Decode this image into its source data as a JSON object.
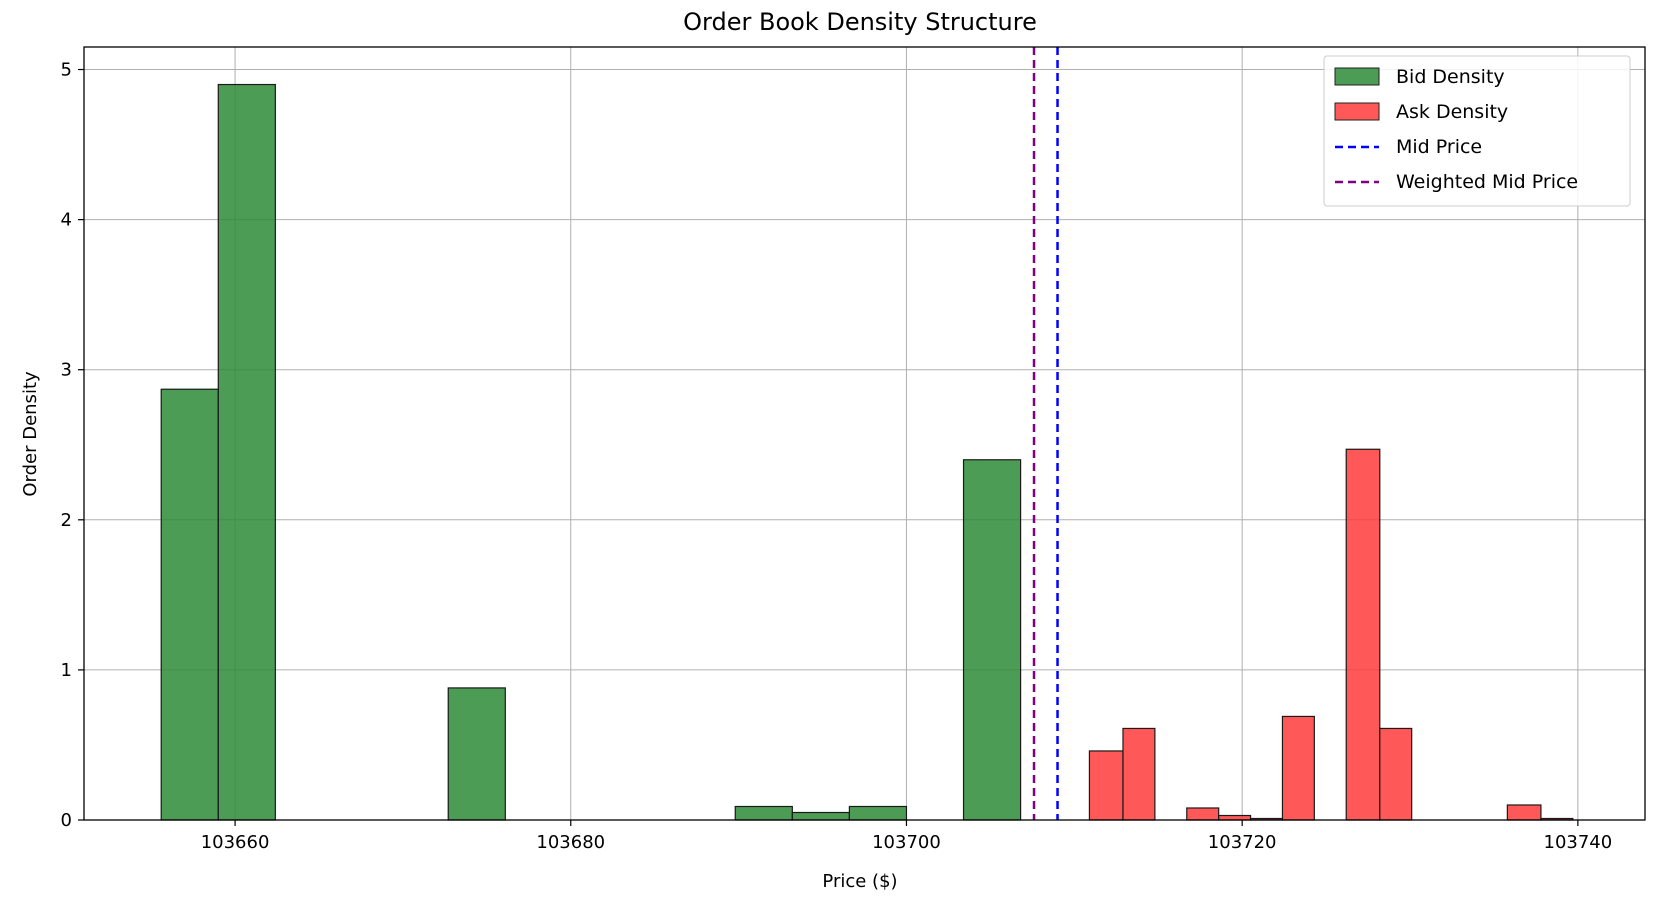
{
  "chart_data": {
    "type": "bar",
    "title": "Order Book Density Structure",
    "xlabel": "Price ($)",
    "ylabel": "Order Density",
    "xlim": [
      103651,
      103744
    ],
    "ylim": [
      0,
      5.15
    ],
    "grid": true,
    "legend_position": "top-right",
    "xticks": [
      103660,
      103680,
      103700,
      103720,
      103740
    ],
    "yticks": [
      0,
      1,
      2,
      3,
      4,
      5
    ],
    "series": [
      {
        "name": "Bid Density",
        "color": "#2e8b37",
        "bins": [
          {
            "x0": 103655.6,
            "x1": 103659.0,
            "value": 2.87
          },
          {
            "x0": 103659.0,
            "x1": 103662.4,
            "value": 4.9
          },
          {
            "x0": 103672.7,
            "x1": 103676.1,
            "value": 0.88
          },
          {
            "x0": 103689.8,
            "x1": 103693.2,
            "value": 0.09
          },
          {
            "x0": 103693.2,
            "x1": 103696.6,
            "value": 0.05
          },
          {
            "x0": 103696.6,
            "x1": 103700.0,
            "value": 0.09
          },
          {
            "x0": 103703.4,
            "x1": 103706.8,
            "value": 2.4
          }
        ]
      },
      {
        "name": "Ask Density",
        "color": "#ff3b3b",
        "bins": [
          {
            "x0": 103710.9,
            "x1": 103712.9,
            "value": 0.46
          },
          {
            "x0": 103712.9,
            "x1": 103714.8,
            "value": 0.61
          },
          {
            "x0": 103716.7,
            "x1": 103718.6,
            "value": 0.08
          },
          {
            "x0": 103718.6,
            "x1": 103720.5,
            "value": 0.03
          },
          {
            "x0": 103720.5,
            "x1": 103722.4,
            "value": 0.01
          },
          {
            "x0": 103722.4,
            "x1": 103724.3,
            "value": 0.69
          },
          {
            "x0": 103726.2,
            "x1": 103728.2,
            "value": 2.47
          },
          {
            "x0": 103728.2,
            "x1": 103730.1,
            "value": 0.61
          },
          {
            "x0": 103735.8,
            "x1": 103737.8,
            "value": 0.1
          },
          {
            "x0": 103737.8,
            "x1": 103739.7,
            "value": 0.01
          }
        ]
      }
    ],
    "reference_lines": [
      {
        "name": "Mid Price",
        "x": 103709.0,
        "color": "#0000ff",
        "style": "dashed"
      },
      {
        "name": "Weighted Mid Price",
        "x": 103707.6,
        "color": "#800080",
        "style": "dashed"
      }
    ]
  }
}
